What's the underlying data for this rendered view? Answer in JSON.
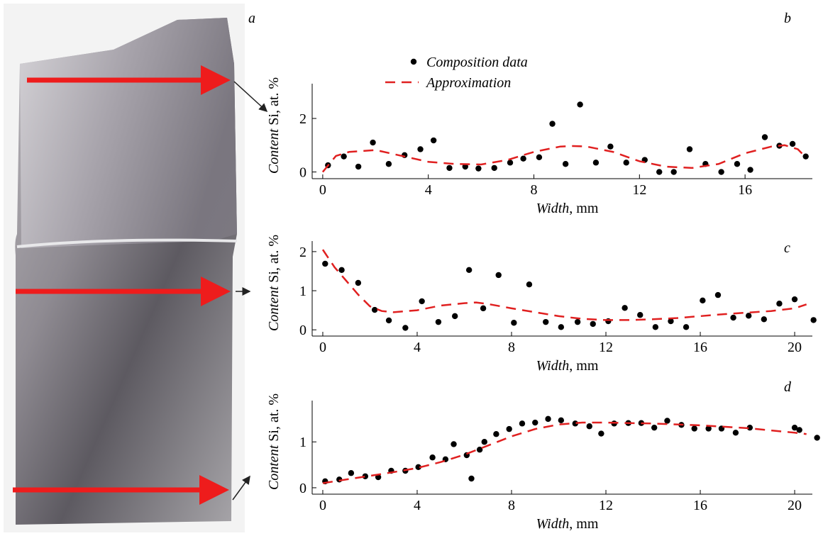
{
  "photo": {
    "panel": "a"
  },
  "chart_data": [
    {
      "type": "scatter",
      "panel": "b",
      "legend": true,
      "xlabel": [
        "Width",
        ", mm"
      ],
      "ylabel": [
        "Content",
        "Si, at. %"
      ],
      "xlim": [
        -0.4,
        18.55
      ],
      "ylim": [
        -0.25,
        3.3
      ],
      "xticks": [
        0,
        4,
        8,
        12,
        16
      ],
      "yticks": [
        0,
        2
      ],
      "series": [
        {
          "name": "Composition data",
          "color": "#000000",
          "style": "dots",
          "x": [
            0.2,
            0.8,
            1.35,
            1.9,
            2.5,
            3.1,
            3.7,
            4.2,
            4.8,
            5.4,
            5.9,
            6.5,
            7.1,
            7.6,
            8.2,
            8.7,
            9.2,
            9.75,
            10.35,
            10.9,
            11.5,
            12.2,
            12.75,
            13.3,
            13.9,
            14.5,
            15.1,
            15.7,
            16.2,
            16.75,
            17.3,
            17.8,
            18.3
          ],
          "values": [
            0.25,
            0.58,
            0.2,
            1.1,
            0.3,
            0.63,
            0.85,
            1.18,
            0.15,
            0.2,
            0.13,
            0.15,
            0.35,
            0.5,
            0.55,
            1.8,
            0.3,
            2.52,
            0.35,
            0.95,
            0.35,
            0.45,
            0,
            0,
            0.85,
            0.3,
            0,
            0.3,
            0.08,
            1.3,
            0.98,
            1.05,
            0.58
          ]
        },
        {
          "name": "Approximation",
          "color": "#e02020",
          "style": "dashed",
          "x": [
            0,
            0.5,
            1,
            2,
            3,
            4,
            5,
            6,
            7,
            8,
            9,
            9.5,
            10,
            11,
            12,
            13,
            14,
            15,
            16,
            17,
            17.5,
            18,
            18.3
          ],
          "values": [
            0,
            0.6,
            0.75,
            0.82,
            0.6,
            0.38,
            0.3,
            0.28,
            0.45,
            0.75,
            0.95,
            0.97,
            0.95,
            0.75,
            0.4,
            0.2,
            0.15,
            0.3,
            0.7,
            0.95,
            1.0,
            0.85,
            0.55
          ]
        }
      ]
    },
    {
      "type": "scatter",
      "panel": "c",
      "xlabel": [
        "Width",
        ", mm"
      ],
      "ylabel": [
        "Content",
        "Si, at. %"
      ],
      "xlim": [
        -0.45,
        20.75
      ],
      "ylim": [
        -0.16,
        2.27
      ],
      "xticks": [
        0,
        4,
        8,
        12,
        16,
        20
      ],
      "yticks": [
        0,
        1,
        2
      ],
      "series": [
        {
          "color": "#000000",
          "style": "dots",
          "x": [
            0.1,
            0.8,
            1.5,
            2.2,
            2.8,
            3.5,
            4.2,
            4.9,
            5.6,
            6.2,
            6.8,
            7.45,
            8.1,
            8.75,
            9.45,
            10.1,
            10.8,
            11.45,
            12.1,
            12.8,
            13.45,
            14.1,
            14.75,
            15.4,
            16.1,
            16.75,
            17.4,
            18.05,
            18.7,
            19.35,
            20.0,
            20.8
          ],
          "values": [
            1.69,
            1.53,
            1.2,
            0.51,
            0.24,
            0.05,
            0.73,
            0.2,
            0.35,
            1.53,
            0.55,
            1.4,
            0.18,
            1.16,
            0.2,
            0.07,
            0.2,
            0.15,
            0.22,
            0.56,
            0.38,
            0.07,
            0.22,
            0.07,
            0.75,
            0.89,
            0.31,
            0.36,
            0.27,
            0.67,
            0.78,
            0.25
          ]
        },
        {
          "color": "#e02020",
          "style": "dashed",
          "x": [
            0,
            0.5,
            1,
            1.5,
            2,
            2.5,
            3,
            4,
            5,
            6,
            6.5,
            7,
            8,
            9,
            10,
            11,
            12,
            13,
            14,
            15,
            16,
            17,
            18,
            19,
            20,
            20.5
          ],
          "values": [
            2.05,
            1.6,
            1.25,
            0.9,
            0.6,
            0.48,
            0.45,
            0.5,
            0.62,
            0.68,
            0.7,
            0.66,
            0.55,
            0.45,
            0.35,
            0.28,
            0.25,
            0.25,
            0.27,
            0.3,
            0.35,
            0.4,
            0.44,
            0.48,
            0.55,
            0.65
          ]
        }
      ]
    },
    {
      "type": "scatter",
      "panel": "d",
      "xlabel": [
        "Width",
        ", mm"
      ],
      "ylabel": [
        "Content",
        "Si, at. %"
      ],
      "xlim": [
        -0.45,
        20.75
      ],
      "ylim": [
        -0.14,
        1.9
      ],
      "xticks": [
        0,
        4,
        8,
        12,
        16,
        20
      ],
      "yticks": [
        0,
        1
      ],
      "series": [
        {
          "color": "#000000",
          "style": "dots",
          "x": [
            0.1,
            0.7,
            1.2,
            1.8,
            2.35,
            2.9,
            3.5,
            4.05,
            4.65,
            5.2,
            5.55,
            6.1,
            6.3,
            6.65,
            6.85,
            7.35,
            7.9,
            8.45,
            9.0,
            9.55,
            10.1,
            10.7,
            11.3,
            11.8,
            12.35,
            12.95,
            13.5,
            14.05,
            14.6,
            15.2,
            15.75,
            16.35,
            16.9,
            17.5,
            18.1,
            20.0,
            20.2,
            20.95
          ],
          "values": [
            0.14,
            0.18,
            0.32,
            0.25,
            0.23,
            0.37,
            0.37,
            0.45,
            0.66,
            0.62,
            0.95,
            0.71,
            0.2,
            0.83,
            1.0,
            1.17,
            1.28,
            1.4,
            1.42,
            1.5,
            1.47,
            1.4,
            1.34,
            1.18,
            1.4,
            1.41,
            1.41,
            1.31,
            1.46,
            1.37,
            1.29,
            1.29,
            1.29,
            1.2,
            1.31,
            1.31,
            1.26,
            1.09
          ]
        },
        {
          "color": "#e02020",
          "style": "dashed",
          "x": [
            0,
            1,
            2,
            3,
            4,
            5,
            6,
            7,
            8,
            9,
            10,
            11,
            12,
            13,
            14,
            15,
            16,
            17,
            18,
            19,
            20,
            20.5
          ],
          "values": [
            0.1,
            0.18,
            0.26,
            0.34,
            0.43,
            0.56,
            0.72,
            0.92,
            1.12,
            1.28,
            1.38,
            1.42,
            1.42,
            1.41,
            1.4,
            1.38,
            1.36,
            1.33,
            1.3,
            1.25,
            1.2,
            1.17
          ]
        }
      ]
    }
  ]
}
